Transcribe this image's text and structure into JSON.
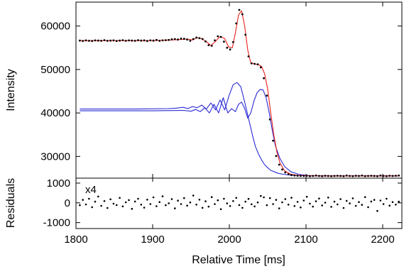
{
  "chart_data": [
    {
      "panel": "main",
      "type": "line",
      "xlabel": "",
      "ylabel": "Intensity",
      "xlim": [
        1800,
        2225
      ],
      "ylim": [
        25000,
        65500
      ],
      "yticks": [
        30000,
        40000,
        50000,
        60000
      ],
      "grid": false,
      "series": [
        {
          "role": "data",
          "marker": "dot",
          "color": "#000000",
          "x": [
            1805,
            1809,
            1813,
            1817,
            1821,
            1825,
            1829,
            1833,
            1837,
            1841,
            1845,
            1849,
            1853,
            1857,
            1861,
            1865,
            1869,
            1873,
            1877,
            1881,
            1885,
            1889,
            1893,
            1897,
            1901,
            1905,
            1909,
            1913,
            1917,
            1921,
            1925,
            1929,
            1933,
            1937,
            1941,
            1945,
            1949,
            1953,
            1957,
            1961,
            1965,
            1969,
            1973,
            1977,
            1981,
            1985,
            1989,
            1993,
            1997,
            2001,
            2005,
            2009,
            2013,
            2017,
            2021,
            2025,
            2029,
            2033,
            2037,
            2041,
            2045,
            2049,
            2053,
            2057,
            2061,
            2065,
            2069,
            2073,
            2077,
            2081,
            2085,
            2089,
            2093,
            2097,
            2101,
            2105,
            2109,
            2113,
            2117,
            2121,
            2125,
            2129,
            2133,
            2137,
            2141,
            2145,
            2149,
            2153,
            2157,
            2161,
            2165,
            2169,
            2173,
            2177,
            2181,
            2185,
            2189,
            2193,
            2197,
            2201,
            2205,
            2209,
            2213,
            2217,
            2221
          ],
          "y": [
            56650,
            56550,
            56700,
            56600,
            56550,
            56700,
            56650,
            56600,
            56750,
            56600,
            56650,
            56700,
            56550,
            56650,
            56750,
            56600,
            56700,
            56650,
            56600,
            56750,
            56650,
            56700,
            56550,
            56700,
            56650,
            56800,
            56600,
            56700,
            56750,
            56800,
            56950,
            57000,
            56900,
            57100,
            57050,
            56900,
            56600,
            57000,
            57350,
            57200,
            57000,
            56450,
            55600,
            55450,
            56700,
            57650,
            57500,
            56400,
            55000,
            54600,
            56300,
            60600,
            63700,
            62700,
            58000,
            53000,
            51400,
            51300,
            51200,
            50500,
            48000,
            44000,
            38500,
            33600,
            30100,
            28100,
            27000,
            26300,
            25900,
            25700,
            25600,
            25550,
            25500,
            25500,
            25550,
            25450,
            25500,
            25600,
            25500,
            25450,
            25550,
            25500,
            25450,
            25500,
            25550,
            25500,
            25450,
            25600,
            25500,
            25450,
            25550,
            25500,
            25600,
            25450,
            25500,
            25550,
            25500,
            25450,
            25600,
            25500,
            25450,
            25550,
            25500,
            25550,
            25600
          ]
        },
        {
          "role": "fit",
          "color": "#e8201c",
          "x": [
            1805,
            1900,
            1925,
            1935,
            1945,
            1952,
            1958,
            1964,
            1970,
            1976,
            1982,
            1988,
            1994,
            1999,
            2004,
            2008,
            2012,
            2016,
            2020,
            2024,
            2028,
            2033,
            2038,
            2042,
            2046,
            2050,
            2054,
            2058,
            2062,
            2066,
            2072,
            2080,
            2090,
            2100,
            2130,
            2160,
            2190,
            2221
          ],
          "y": [
            56650,
            56650,
            56800,
            56900,
            57000,
            56800,
            57300,
            57100,
            56400,
            55500,
            56500,
            57600,
            57100,
            55200,
            55000,
            58500,
            62600,
            63500,
            60000,
            54500,
            51500,
            51300,
            51100,
            50700,
            49000,
            45500,
            40000,
            35000,
            31000,
            28500,
            26700,
            25900,
            25650,
            25550,
            25500,
            25500,
            25500,
            25520
          ]
        },
        {
          "role": "component",
          "color": "#2a2ad4",
          "x": [
            1805,
            1880,
            1920,
            1930,
            1940,
            1946,
            1952,
            1958,
            1964,
            1970,
            1976,
            1982,
            1988,
            1994,
            2000,
            2005,
            2010,
            2015,
            2020,
            2026,
            2030,
            2034,
            2038,
            2042,
            2046,
            2050,
            2054,
            2058,
            2064,
            2070,
            2080,
            2090,
            2100,
            2120,
            2150,
            2221
          ],
          "y": [
            40900,
            40900,
            41000,
            41100,
            41300,
            41000,
            41500,
            41200,
            41800,
            40900,
            42300,
            40700,
            43000,
            40700,
            44200,
            46500,
            47000,
            46000,
            42500,
            38000,
            35000,
            32300,
            30600,
            29200,
            28100,
            27400,
            26800,
            26500,
            26100,
            25900,
            25700,
            25600,
            25550,
            25520,
            25500,
            25500
          ]
        },
        {
          "role": "component",
          "color": "#2a2ad4",
          "x": [
            1805,
            1900,
            1940,
            1950,
            1956,
            1962,
            1968,
            1974,
            1980,
            1986,
            1992,
            1998,
            2003,
            2008,
            2012,
            2016,
            2020,
            2024,
            2028,
            2032,
            2036,
            2040,
            2044,
            2048,
            2052,
            2056,
            2060,
            2066,
            2072,
            2080,
            2090,
            2100,
            2110,
            2130,
            2160,
            2221
          ],
          "y": [
            40500,
            40500,
            40600,
            40400,
            40800,
            40300,
            41200,
            40000,
            42000,
            40000,
            43500,
            40000,
            41000,
            40300,
            42000,
            42500,
            41000,
            38800,
            40000,
            42700,
            44600,
            45400,
            45300,
            43500,
            40000,
            36000,
            32500,
            29500,
            27700,
            26500,
            25900,
            25650,
            25550,
            25500,
            25500,
            25500
          ]
        }
      ]
    },
    {
      "panel": "residuals",
      "type": "scatter",
      "xlabel": "Relative Time [ms]",
      "ylabel": "Residuals",
      "xlim": [
        1800,
        2225
      ],
      "ylim": [
        -1300,
        1250
      ],
      "yticks": [
        -1000,
        0,
        1000
      ],
      "xticks": [
        1800,
        1900,
        2000,
        2100,
        2200
      ],
      "annotation": "x4",
      "series": [
        {
          "role": "residuals",
          "marker": "dot",
          "color": "#000000",
          "x": [
            1805,
            1809,
            1813,
            1817,
            1821,
            1825,
            1829,
            1833,
            1837,
            1841,
            1845,
            1849,
            1853,
            1857,
            1861,
            1865,
            1869,
            1873,
            1877,
            1881,
            1885,
            1889,
            1893,
            1897,
            1901,
            1905,
            1909,
            1913,
            1917,
            1921,
            1925,
            1929,
            1933,
            1937,
            1941,
            1945,
            1949,
            1953,
            1957,
            1961,
            1965,
            1969,
            1973,
            1977,
            1981,
            1985,
            1989,
            1993,
            1997,
            2001,
            2005,
            2009,
            2013,
            2017,
            2021,
            2025,
            2029,
            2033,
            2037,
            2041,
            2045,
            2049,
            2053,
            2057,
            2061,
            2065,
            2069,
            2073,
            2077,
            2081,
            2085,
            2089,
            2093,
            2097,
            2101,
            2105,
            2109,
            2113,
            2117,
            2121,
            2125,
            2129,
            2133,
            2137,
            2141,
            2145,
            2149,
            2153,
            2157,
            2161,
            2165,
            2169,
            2173,
            2177,
            2181,
            2185,
            2189,
            2193,
            2197,
            2201,
            2205,
            2209,
            2213,
            2217,
            2221
          ],
          "y": [
            -120,
            150,
            -80,
            210,
            -220,
            60,
            320,
            -150,
            90,
            -260,
            180,
            -40,
            -110,
            250,
            -180,
            30,
            140,
            -300,
            70,
            210,
            -90,
            -240,
            160,
            -60,
            280,
            -170,
            40,
            330,
            -120,
            -20,
            190,
            -280,
            110,
            -60,
            240,
            -140,
            20,
            370,
            -90,
            160,
            -250,
            80,
            -190,
            290,
            -60,
            130,
            -320,
            210,
            -30,
            -160,
            90,
            250,
            -110,
            -250,
            60,
            200,
            -70,
            -180,
            20,
            350,
            280,
            -120,
            240,
            -60,
            150,
            -280,
            30,
            190,
            -90,
            260,
            -160,
            50,
            -230,
            120,
            310,
            -40,
            -190,
            80,
            220,
            -130,
            10,
            270,
            -200,
            60,
            -80,
            190,
            -260,
            100,
            -30,
            230,
            -150,
            40,
            -100,
            290,
            -220,
            70,
            150,
            -410,
            120,
            -60,
            210,
            -140,
            40,
            -90,
            60
          ]
        }
      ]
    }
  ]
}
